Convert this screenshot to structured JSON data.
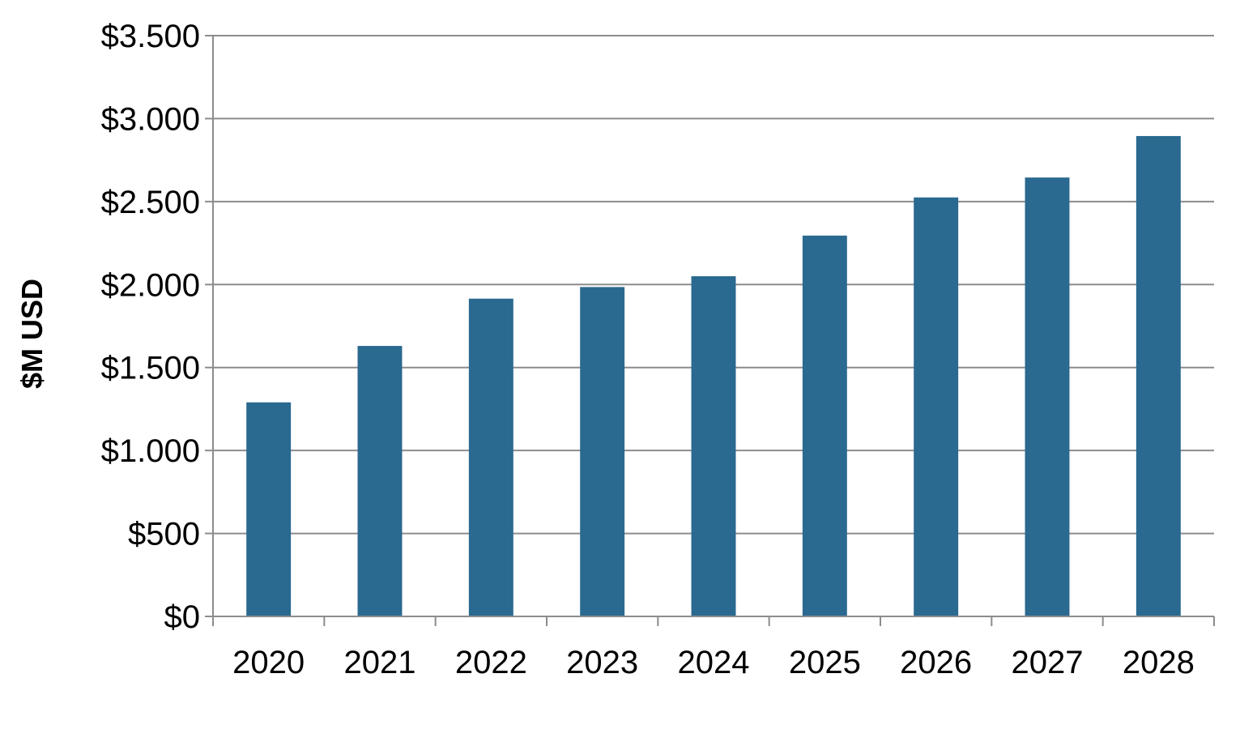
{
  "chart_data": {
    "type": "bar",
    "title": "",
    "xlabel": "",
    "ylabel": "$M USD",
    "categories": [
      "2020",
      "2021",
      "2022",
      "2023",
      "2024",
      "2025",
      "2026",
      "2027",
      "2028"
    ],
    "values": [
      1290,
      1630,
      1915,
      1985,
      2050,
      2295,
      2525,
      2645,
      2895
    ],
    "ylim": [
      0,
      3500
    ],
    "yticks": [
      0,
      500,
      1000,
      1500,
      2000,
      2500,
      3000,
      3500
    ],
    "ytick_labels": [
      "$0",
      "$500",
      "$1.000",
      "$1.500",
      "$2.000",
      "$2.500",
      "$3.000",
      "$3.500"
    ],
    "grid": true,
    "legend": "none",
    "colors": {
      "bar": "#2a6990",
      "grid": "#8c8c8c",
      "axis": "#8c8c8c"
    }
  }
}
